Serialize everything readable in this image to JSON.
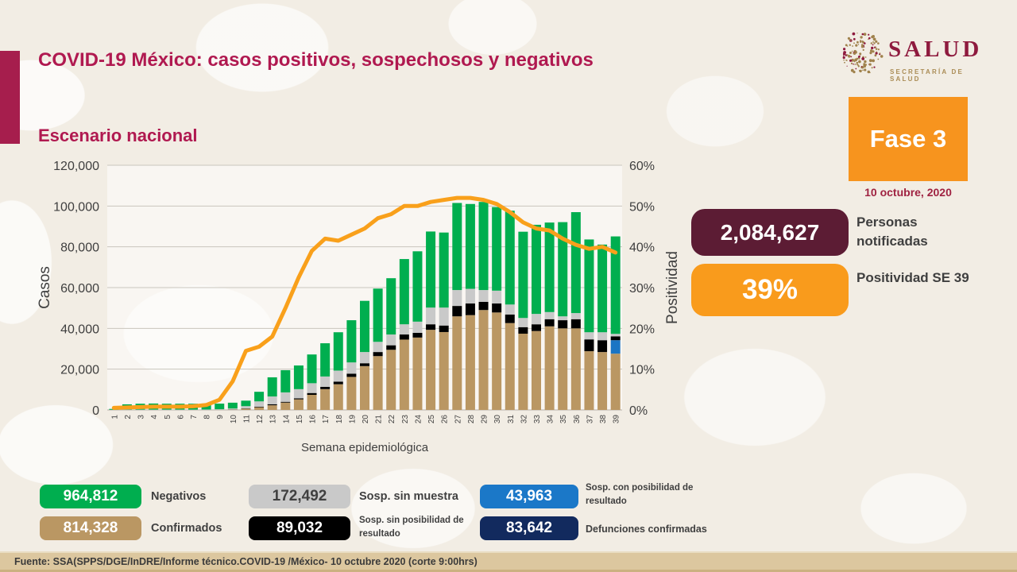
{
  "header": {
    "title": "COVID-19 México: casos positivos, sospechosos y negativos",
    "subtitle": "Escenario nacional",
    "logo_text": "SALUD",
    "logo_subtext": "SECRETARÍA DE SALUD"
  },
  "phase": {
    "label": "Fase 3",
    "date": "10 octubre, 2020"
  },
  "stats": [
    {
      "value": "2,084,627",
      "label": "Personas notificadas",
      "color": "#5C1C34",
      "text_color": "#FFFFFF"
    },
    {
      "value": "39%",
      "label": "Positividad SE 39",
      "color": "#F99B1C",
      "text_color": "#FFFFFF"
    }
  ],
  "chart_data": {
    "type": "bar",
    "subtype": "stacked-bar-with-line",
    "title": "Escenario nacional",
    "xlabel": "Semana epidemiológica",
    "ylabel": "Casos",
    "y2label": "Positividad",
    "ylim": [
      0,
      120000
    ],
    "y2lim": [
      0,
      60
    ],
    "ytick_step": 20000,
    "y2tick_step": 10,
    "grid": true,
    "legend_position": "bottom-external",
    "categories": [
      "1",
      "2",
      "3",
      "4",
      "5",
      "6",
      "7",
      "8",
      "9",
      "10",
      "11",
      "12",
      "13",
      "14",
      "15",
      "16",
      "17",
      "18",
      "19",
      "20",
      "21",
      "22",
      "23",
      "24",
      "25",
      "26",
      "27",
      "28",
      "29",
      "30",
      "31",
      "32",
      "33",
      "34",
      "35",
      "36",
      "37",
      "38",
      "39"
    ],
    "series": [
      {
        "name": "Confirmados",
        "color": "#BA9763",
        "values": [
          0,
          0,
          0,
          0,
          0,
          0,
          0,
          0,
          100,
          150,
          600,
          1300,
          2300,
          3600,
          5200,
          7400,
          10200,
          12600,
          16200,
          21500,
          26400,
          29500,
          34500,
          35500,
          39300,
          38200,
          45900,
          46500,
          49000,
          47800,
          42600,
          37400,
          38700,
          41000,
          40000,
          40000,
          28800,
          28400,
          27600
        ]
      },
      {
        "name": "Sosp. con posibilidad de resultado",
        "color": "#1B75C4",
        "values": [
          0,
          0,
          0,
          0,
          0,
          0,
          0,
          0,
          0,
          0,
          0,
          0,
          0,
          0,
          0,
          0,
          0,
          0,
          0,
          0,
          0,
          0,
          0,
          0,
          0,
          0,
          0,
          0,
          0,
          0,
          0,
          0,
          0,
          0,
          0,
          0,
          0,
          0,
          6600
        ]
      },
      {
        "name": "Sosp. sin posibilidad de resultado",
        "color": "#000000",
        "values": [
          0,
          0,
          0,
          0,
          0,
          0,
          0,
          0,
          0,
          50,
          150,
          300,
          500,
          400,
          500,
          900,
          1100,
          1300,
          1600,
          1400,
          2000,
          2200,
          2500,
          2300,
          2700,
          3200,
          5100,
          5700,
          4000,
          4400,
          4200,
          3200,
          3300,
          3500,
          4000,
          4500,
          5800,
          5800,
          1900
        ]
      },
      {
        "name": "Sosp. sin muestra",
        "color": "#C9C9C9",
        "values": [
          100,
          150,
          150,
          150,
          150,
          150,
          150,
          200,
          250,
          500,
          1100,
          2600,
          3800,
          4600,
          4500,
          4800,
          5100,
          5400,
          5500,
          5500,
          5000,
          5300,
          5000,
          5500,
          8200,
          8800,
          7800,
          7200,
          5800,
          6300,
          4900,
          4500,
          5100,
          3500,
          1900,
          3000,
          3500,
          3900,
          1200
        ]
      },
      {
        "name": "Negativos",
        "color": "#00AE4F",
        "values": [
          400,
          2600,
          2900,
          3000,
          2900,
          2900,
          2900,
          2950,
          2750,
          2850,
          2700,
          4700,
          9400,
          10900,
          11600,
          14100,
          16300,
          18800,
          20700,
          25100,
          26100,
          27600,
          32000,
          34500,
          37300,
          36800,
          42700,
          41600,
          43200,
          41000,
          46000,
          42300,
          43700,
          43900,
          46200,
          49500,
          45500,
          43000,
          47800
        ]
      }
    ],
    "line": {
      "name": "Positividad",
      "color": "#F9A01B",
      "values": [
        0.5,
        0.6,
        0.7,
        0.8,
        0.8,
        0.8,
        0.9,
        1.2,
        2.5,
        7,
        14.5,
        15.5,
        18,
        25,
        32.5,
        39,
        42,
        41.5,
        43,
        44.5,
        47,
        48,
        50,
        50,
        51,
        51.5,
        52,
        52,
        51.5,
        50.5,
        48.5,
        46,
        44.5,
        44,
        42,
        40.5,
        39.5,
        40,
        38.6
      ]
    }
  },
  "legend": [
    {
      "value": "964,812",
      "label": "Negativos",
      "color": "#00AE4F",
      "text_color": "#FFFFFF"
    },
    {
      "value": "172,492",
      "label": "Sosp. sin muestra",
      "color": "#C9C9C9",
      "text_color": "#404040"
    },
    {
      "value": "43,963",
      "label": "Sosp. con posibilidad de resultado",
      "color": "#1B78C8",
      "text_color": "#FFFFFF"
    },
    {
      "value": "814,328",
      "label": "Confirmados",
      "color": "#BA9763",
      "text_color": "#FFFFFF"
    },
    {
      "value": "89,032",
      "label": "Sosp. sin posibilidad de resultado",
      "color": "#000000",
      "text_color": "#FFFFFF"
    },
    {
      "value": "83,642",
      "label": "Defunciones confirmadas",
      "color": "#122A5E",
      "text_color": "#FFFFFF"
    }
  ],
  "footer": {
    "source": "Fuente: SSA(SPPS/DGE/InDRE/Informe técnico.COVID-19 /México- 10 octubre 2020 (corte 9:00hrs)"
  }
}
